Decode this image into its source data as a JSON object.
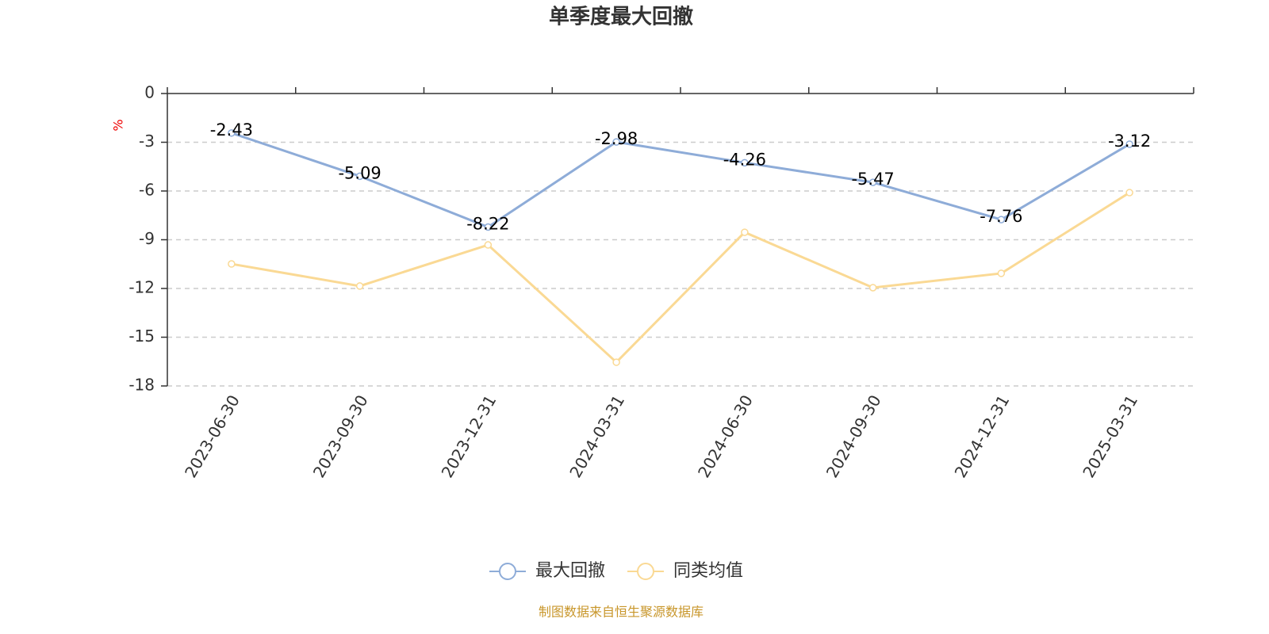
{
  "chart_data": {
    "type": "line",
    "title": "单季度最大回撤",
    "y_label": "%",
    "categories": [
      "2023-06-30",
      "2023-09-30",
      "2023-12-31",
      "2024-03-31",
      "2024-06-30",
      "2024-09-30",
      "2024-12-31",
      "2025-03-31"
    ],
    "series": [
      {
        "name": "最大回撤",
        "color": "#8eacd8",
        "values": [
          -2.43,
          -5.09,
          -8.22,
          -2.98,
          -4.26,
          -5.47,
          -7.76,
          -3.12
        ],
        "show_labels": true
      },
      {
        "name": "同类均值",
        "color": "#fad994",
        "values": [
          -10.49,
          -11.85,
          -9.32,
          -16.54,
          -8.54,
          -11.95,
          -11.07,
          -6.1
        ],
        "show_labels": false
      }
    ],
    "ylim": [
      -18,
      0
    ],
    "yticks": [
      0,
      -3,
      -6,
      -9,
      -12,
      -15,
      -18
    ],
    "grid": true,
    "legend": "bottom",
    "source": "制图数据来自恒生聚源数据库"
  }
}
